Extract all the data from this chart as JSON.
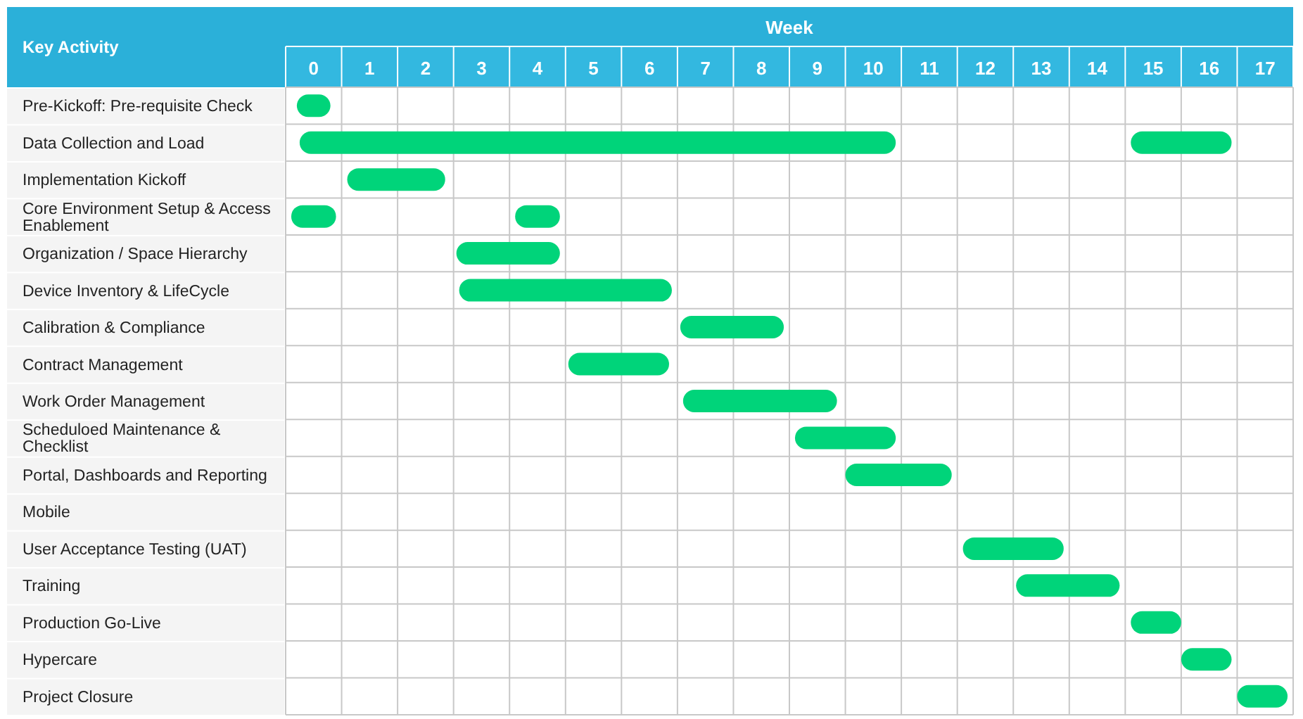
{
  "chart_data": {
    "type": "bar",
    "orientation": "horizontal",
    "xlabel": "Week",
    "ylabel": "Key Activity",
    "categories": [
      "Pre-Kickoff: Pre-requisite Check",
      "Data Collection and Load",
      "Implementation Kickoff",
      "Core Environment Setup & Access Enablement",
      "Organization / Space Hierarchy",
      "Device Inventory & LifeCycle",
      "Calibration & Compliance",
      "Contract Management",
      "Work Order Management",
      "Scheduloed Maintenance & Checklist",
      "Portal, Dashboards and Reporting",
      "Mobile",
      "User Acceptance Testing (UAT)",
      "Training",
      "Production Go-Live",
      "Hypercare",
      "Project Closure"
    ],
    "series": [
      {
        "color": "#00d47a",
        "base": [
          0.2,
          0.25,
          1.1,
          0.1,
          3.05,
          3.1,
          7.05,
          5.05,
          7.1,
          9.1,
          10.0,
          null,
          12.1,
          13.05,
          15.1,
          16.0,
          17.0
        ],
        "values": [
          0.6,
          10.65,
          1.75,
          0.8,
          1.85,
          3.8,
          1.85,
          1.8,
          2.75,
          1.8,
          1.9,
          null,
          1.8,
          1.85,
          0.9,
          0.9,
          0.9
        ]
      },
      {
        "color": "#00d47a",
        "base": [
          null,
          15.1,
          null,
          4.1,
          null,
          null,
          null,
          null,
          null,
          null,
          null,
          null,
          null,
          null,
          null,
          null,
          null
        ],
        "values": [
          null,
          1.8,
          null,
          0.8,
          null,
          null,
          null,
          null,
          null,
          null,
          null,
          null,
          null,
          null,
          null,
          null,
          null
        ]
      }
    ],
    "xlim": [
      0,
      18
    ],
    "xticks": [
      {
        "value": 0.5,
        "label": "0"
      },
      {
        "value": 1.5,
        "label": "1"
      },
      {
        "value": 2.5,
        "label": "2"
      },
      {
        "value": 3.5,
        "label": "3"
      },
      {
        "value": 4.5,
        "label": "4"
      },
      {
        "value": 5.5,
        "label": "5"
      },
      {
        "value": 6.5,
        "label": "6"
      },
      {
        "value": 7.5,
        "label": "7"
      },
      {
        "value": 8.5,
        "label": "8"
      },
      {
        "value": 9.5,
        "label": "9"
      },
      {
        "value": 10.5,
        "label": "10"
      },
      {
        "value": 11.5,
        "label": "11"
      },
      {
        "value": 12.5,
        "label": "12"
      },
      {
        "value": 13.5,
        "label": "13"
      },
      {
        "value": 14.5,
        "label": "14"
      },
      {
        "value": 15.5,
        "label": "15"
      },
      {
        "value": 16.5,
        "label": "16"
      },
      {
        "value": 17.5,
        "label": "17"
      }
    ],
    "grid": true
  }
}
